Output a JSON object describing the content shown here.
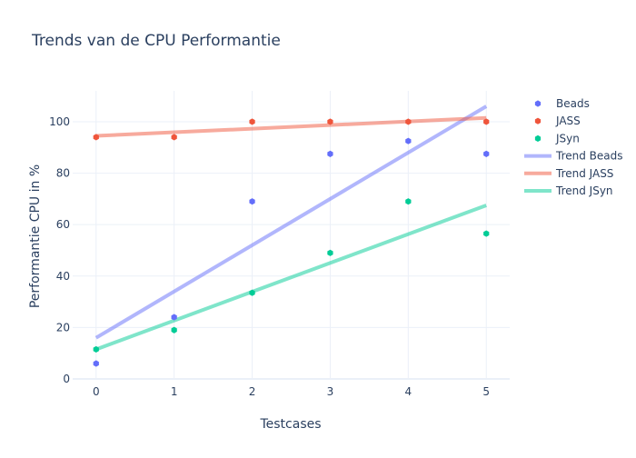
{
  "chart_data": {
    "type": "scatter",
    "title": "Trends van de CPU Performantie",
    "xlabel": "Testcases",
    "ylabel": "Performantie CPU in %",
    "x": [
      0,
      1,
      2,
      3,
      4,
      5
    ],
    "xlim": [
      -0.3,
      5.3
    ],
    "ylim": [
      0,
      112
    ],
    "xticks": [
      0,
      1,
      2,
      3,
      4,
      5
    ],
    "yticks": [
      0,
      20,
      40,
      60,
      80,
      100
    ],
    "grid": true,
    "legend_position": "top-right",
    "series": [
      {
        "name": "Beads",
        "kind": "markers",
        "color": "#636efa",
        "values": [
          6,
          24,
          69,
          87.5,
          92.5,
          87.5
        ]
      },
      {
        "name": "JASS",
        "kind": "markers",
        "color": "#ef553b",
        "values": [
          94,
          94,
          100,
          100,
          100,
          100
        ]
      },
      {
        "name": "JSyn",
        "kind": "markers",
        "color": "#00cc96",
        "values": [
          11.5,
          19,
          33.5,
          49,
          69,
          56.5
        ]
      }
    ],
    "trends": [
      {
        "name": "Trend Beads",
        "kind": "line",
        "color": "#636efa",
        "start": [
          0,
          16
        ],
        "end": [
          5,
          106
        ]
      },
      {
        "name": "Trend JASS",
        "kind": "line",
        "color": "#ef553b",
        "start": [
          0,
          94.5
        ],
        "end": [
          5,
          101.5
        ]
      },
      {
        "name": "Trend JSyn",
        "kind": "line",
        "color": "#00cc96",
        "start": [
          0,
          11.5
        ],
        "end": [
          5,
          67.5
        ]
      }
    ]
  }
}
